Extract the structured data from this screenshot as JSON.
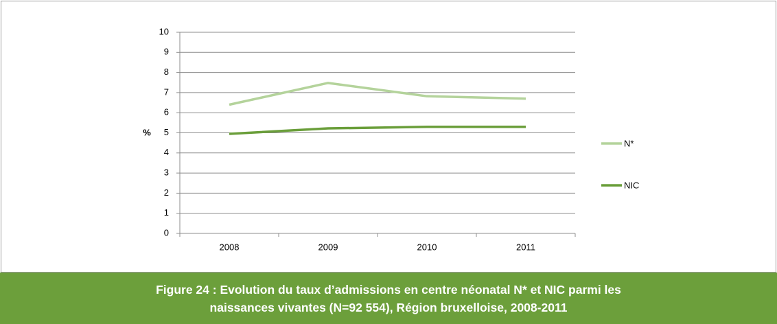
{
  "chart_data": {
    "type": "line",
    "title": "Figure 24 : Evolution du taux d’admissions en centre néonatal N* et NIC parmi les naissances vivantes (N=92 554), Région bruxelloise, 2008-2011",
    "y_label": "%",
    "categories": [
      "2008",
      "2009",
      "2010",
      "2011"
    ],
    "series": [
      {
        "name": "N*",
        "color": "#b4d39b",
        "values": [
          6.4,
          7.48,
          6.82,
          6.7
        ]
      },
      {
        "name": "NIC",
        "color": "#6a9e3a",
        "values": [
          4.95,
          5.22,
          5.3,
          5.3
        ]
      }
    ],
    "ylim": [
      0,
      10
    ],
    "yticks": [
      0,
      1,
      2,
      3,
      4,
      5,
      6,
      7,
      8,
      9,
      10
    ],
    "grid": true,
    "legend": "right"
  }
}
